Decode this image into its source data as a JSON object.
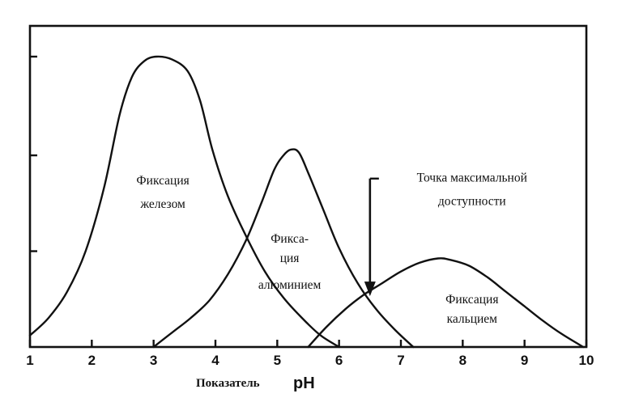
{
  "chart_data": {
    "type": "line",
    "title": "",
    "xlabel_word": "Показатель",
    "xlabel_symbol": "pH",
    "ylabel": "",
    "xlim": [
      1,
      10
    ],
    "ylim": [
      0,
      1
    ],
    "x_ticks": [
      1,
      2,
      3,
      4,
      5,
      6,
      7,
      8,
      9,
      10
    ],
    "y_ticks": [
      0.33,
      0.66,
      1.0
    ],
    "grid": false,
    "series": [
      {
        "color": "#111111",
        "points": [
          [
            1.0,
            0.04
          ],
          [
            1.3,
            0.1
          ],
          [
            1.6,
            0.19
          ],
          [
            1.9,
            0.33
          ],
          [
            2.2,
            0.55
          ],
          [
            2.45,
            0.8
          ],
          [
            2.65,
            0.93
          ],
          [
            2.85,
            0.985
          ],
          [
            3.05,
            1.0
          ],
          [
            3.3,
            0.99
          ],
          [
            3.55,
            0.95
          ],
          [
            3.75,
            0.85
          ],
          [
            3.95,
            0.68
          ],
          [
            4.2,
            0.52
          ],
          [
            4.5,
            0.38
          ],
          [
            4.8,
            0.26
          ],
          [
            5.1,
            0.17
          ],
          [
            5.4,
            0.1
          ],
          [
            5.7,
            0.04
          ],
          [
            6.0,
            0.0
          ]
        ]
      },
      {
        "color": "#111111",
        "points": [
          [
            3.0,
            0.0
          ],
          [
            3.3,
            0.05
          ],
          [
            3.6,
            0.1
          ],
          [
            3.9,
            0.16
          ],
          [
            4.2,
            0.25
          ],
          [
            4.5,
            0.37
          ],
          [
            4.75,
            0.5
          ],
          [
            4.95,
            0.61
          ],
          [
            5.1,
            0.66
          ],
          [
            5.22,
            0.68
          ],
          [
            5.35,
            0.67
          ],
          [
            5.5,
            0.6
          ],
          [
            5.75,
            0.47
          ],
          [
            6.0,
            0.34
          ],
          [
            6.3,
            0.22
          ],
          [
            6.6,
            0.13
          ],
          [
            6.9,
            0.06
          ],
          [
            7.2,
            0.0
          ]
        ]
      },
      {
        "color": "#111111",
        "points": [
          [
            5.5,
            0.0
          ],
          [
            5.8,
            0.07
          ],
          [
            6.1,
            0.13
          ],
          [
            6.4,
            0.18
          ],
          [
            6.7,
            0.22
          ],
          [
            7.0,
            0.26
          ],
          [
            7.3,
            0.29
          ],
          [
            7.6,
            0.305
          ],
          [
            7.8,
            0.3
          ],
          [
            8.1,
            0.28
          ],
          [
            8.4,
            0.24
          ],
          [
            8.7,
            0.19
          ],
          [
            9.0,
            0.14
          ],
          [
            9.3,
            0.09
          ],
          [
            9.6,
            0.045
          ],
          [
            9.95,
            0.0
          ]
        ]
      }
    ],
    "annotations": [
      {
        "lines": [
          "Фиксация",
          "железом"
        ],
        "x": 3.15,
        "y": 0.56
      },
      {
        "lines": [
          "Фикса-",
          "ция",
          "алюминием"
        ],
        "x": 5.2,
        "y": 0.36
      },
      {
        "lines": [
          "Точка максимальной",
          "доступности"
        ],
        "x": 8.15,
        "y": 0.57
      },
      {
        "lines": [
          "Фиксация",
          "кальцием"
        ],
        "x": 8.15,
        "y": 0.15
      }
    ],
    "arrow": {
      "x": 6.5,
      "y_from": 0.58,
      "y_to": 0.175
    }
  }
}
